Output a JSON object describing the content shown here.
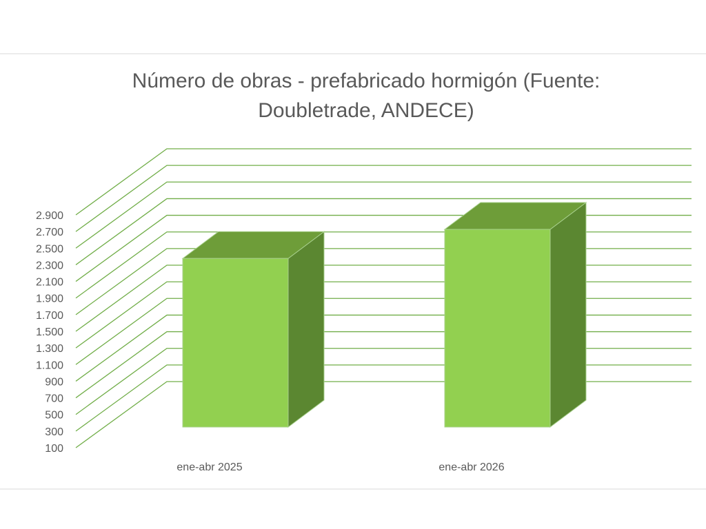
{
  "chart_data": {
    "type": "bar",
    "title": "Número de obras - prefabricado hormigón (Fuente: Doubletrade, ANDECE)",
    "title_lines": [
      "Número de obras - prefabricado hormigón (Fuente:",
      "Doubletrade, ANDECE)"
    ],
    "categories": [
      "ene-abr 2025",
      "ene-abr 2026"
    ],
    "values": [
      2600,
      2950
    ],
    "ylim": [
      100,
      2900
    ],
    "yticks": [
      "100",
      "300",
      "500",
      "700",
      "900",
      "1.100",
      "1.300",
      "1.500",
      "1.700",
      "1.900",
      "2.100",
      "2.300",
      "2.500",
      "2.700",
      "2.900"
    ],
    "xlabel": "",
    "ylabel": "",
    "grid": true,
    "legend": "none",
    "style": "3d-column",
    "colors": {
      "bar_front": "#92d050",
      "bar_top": "#6e9d39",
      "bar_side": "#5b8731",
      "gridlines": "#70ad47",
      "text": "#595959"
    }
  }
}
